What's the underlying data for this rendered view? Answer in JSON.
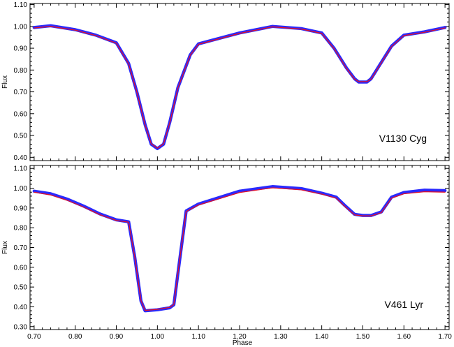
{
  "chart_data": [
    {
      "type": "line",
      "panel": "top",
      "ylabel": "Flux",
      "xlabel": "",
      "xlim": [
        0.69,
        1.71
      ],
      "ylim": [
        0.385,
        1.105
      ],
      "xticks": [
        "0.70",
        "0.80",
        "0.90",
        "1.00",
        "1.10",
        "1.20",
        "1.30",
        "1.40",
        "1.50",
        "1.60",
        "1.70"
      ],
      "yticks": [
        "0.40",
        "0.50",
        "0.60",
        "0.70",
        "0.80",
        "0.90",
        "1.00",
        "1.10"
      ],
      "annotation": "V1130 Cyg",
      "series": [
        {
          "role": "observed",
          "color": "#2a2aff",
          "x": [
            0.7,
            0.74,
            0.8,
            0.85,
            0.9,
            0.93,
            0.95,
            0.97,
            0.985,
            1.0,
            1.015,
            1.03,
            1.05,
            1.08,
            1.1,
            1.2,
            1.28,
            1.35,
            1.4,
            1.43,
            1.46,
            1.48,
            1.49,
            1.51,
            1.52,
            1.54,
            1.57,
            1.6,
            1.65,
            1.7
          ],
          "y": [
            0.995,
            1.003,
            0.985,
            0.96,
            0.925,
            0.83,
            0.7,
            0.55,
            0.46,
            0.44,
            0.46,
            0.56,
            0.72,
            0.87,
            0.92,
            0.97,
            1.0,
            0.99,
            0.97,
            0.9,
            0.81,
            0.76,
            0.745,
            0.745,
            0.76,
            0.82,
            0.91,
            0.96,
            0.975,
            0.995
          ]
        },
        {
          "role": "model",
          "color": "#e0102a",
          "x": [
            0.7,
            0.74,
            0.8,
            0.85,
            0.9,
            0.93,
            0.95,
            0.97,
            0.985,
            1.0,
            1.015,
            1.03,
            1.05,
            1.08,
            1.1,
            1.2,
            1.28,
            1.35,
            1.4,
            1.43,
            1.46,
            1.48,
            1.49,
            1.51,
            1.52,
            1.54,
            1.57,
            1.6,
            1.65,
            1.7
          ],
          "y": [
            0.993,
            1.0,
            0.983,
            0.958,
            0.923,
            0.828,
            0.698,
            0.548,
            0.462,
            0.442,
            0.462,
            0.558,
            0.718,
            0.868,
            0.918,
            0.968,
            0.998,
            0.988,
            0.968,
            0.898,
            0.808,
            0.758,
            0.747,
            0.747,
            0.758,
            0.818,
            0.908,
            0.958,
            0.973,
            0.993
          ]
        }
      ]
    },
    {
      "type": "line",
      "panel": "bottom",
      "ylabel": "Flux",
      "xlabel": "Phase",
      "xlim": [
        0.69,
        1.71
      ],
      "ylim": [
        0.285,
        1.115
      ],
      "xticks": [
        "0.70",
        "0.80",
        "0.90",
        "1.00",
        "1.10",
        "1.20",
        "1.30",
        "1.40",
        "1.50",
        "1.60",
        "1.70"
      ],
      "yticks": [
        "0.30",
        "0.40",
        "0.50",
        "0.60",
        "0.70",
        "0.80",
        "0.90",
        "1.00",
        "1.10"
      ],
      "annotation": "V461 Lyr",
      "series": [
        {
          "role": "observed",
          "color": "#2a2aff",
          "x": [
            0.7,
            0.74,
            0.78,
            0.82,
            0.86,
            0.9,
            0.93,
            0.945,
            0.96,
            0.97,
            1.0,
            1.03,
            1.04,
            1.055,
            1.07,
            1.1,
            1.2,
            1.28,
            1.35,
            1.4,
            1.435,
            1.455,
            1.48,
            1.5,
            1.52,
            1.545,
            1.57,
            1.6,
            1.65,
            1.7
          ],
          "y": [
            0.985,
            0.972,
            0.945,
            0.91,
            0.87,
            0.84,
            0.83,
            0.65,
            0.43,
            0.38,
            0.385,
            0.395,
            0.41,
            0.65,
            0.885,
            0.92,
            0.985,
            1.008,
            0.998,
            0.975,
            0.955,
            0.915,
            0.868,
            0.862,
            0.862,
            0.88,
            0.955,
            0.978,
            0.99,
            0.988
          ]
        },
        {
          "role": "model",
          "color": "#e0102a",
          "x": [
            0.7,
            0.74,
            0.78,
            0.82,
            0.86,
            0.9,
            0.93,
            0.945,
            0.96,
            0.97,
            1.0,
            1.03,
            1.04,
            1.055,
            1.07,
            1.1,
            1.2,
            1.28,
            1.35,
            1.4,
            1.435,
            1.455,
            1.48,
            1.5,
            1.52,
            1.545,
            1.57,
            1.6,
            1.65,
            1.7
          ],
          "y": [
            0.98,
            0.966,
            0.939,
            0.905,
            0.866,
            0.837,
            0.828,
            0.65,
            0.432,
            0.382,
            0.387,
            0.397,
            0.412,
            0.65,
            0.882,
            0.915,
            0.978,
            1.002,
            0.992,
            0.97,
            0.95,
            0.91,
            0.865,
            0.86,
            0.86,
            0.876,
            0.95,
            0.972,
            0.982,
            0.98
          ]
        }
      ]
    }
  ]
}
